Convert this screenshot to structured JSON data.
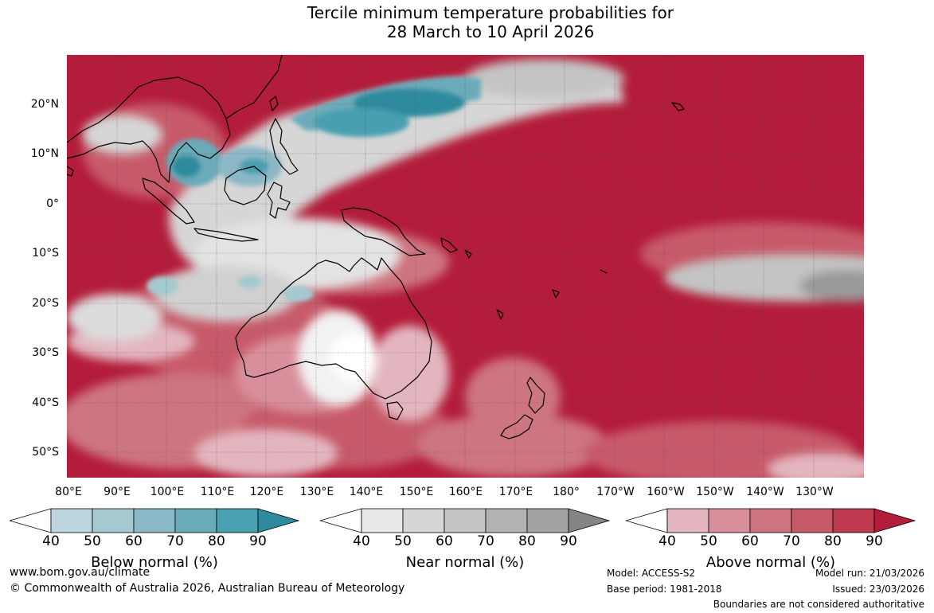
{
  "title": {
    "line1": "Tercile minimum temperature probabilities for",
    "line2": "28 March to 10 April 2026"
  },
  "map": {
    "lat_labels": [
      "20°N",
      "10°N",
      "0°",
      "10°S",
      "20°S",
      "30°S",
      "40°S",
      "50°S"
    ],
    "lon_labels": [
      "80°E",
      "90°E",
      "100°E",
      "110°E",
      "120°E",
      "130°E",
      "140°E",
      "150°E",
      "160°E",
      "170°E",
      "180°",
      "170°W",
      "160°W",
      "150°W",
      "140°W",
      "130°W"
    ],
    "lat_range": [
      -55,
      30
    ],
    "lon_range": [
      80,
      240
    ]
  },
  "colorbars": [
    {
      "label": "Below normal (%)",
      "ticks": [
        "40",
        "50",
        "60",
        "70",
        "80",
        "90"
      ],
      "colors": [
        "#ffffff",
        "#bcd5dc",
        "#a5c9d0",
        "#8bb8c6",
        "#6aabb9",
        "#4a9fb0",
        "#2e8b9e"
      ]
    },
    {
      "label": "Near normal (%)",
      "ticks": [
        "40",
        "50",
        "60",
        "70",
        "80",
        "90"
      ],
      "colors": [
        "#ffffff",
        "#e8e8e8",
        "#d6d6d6",
        "#c4c4c4",
        "#b3b3b3",
        "#a3a3a3",
        "#858585"
      ]
    },
    {
      "label": "Above normal (%)",
      "ticks": [
        "40",
        "50",
        "60",
        "70",
        "80",
        "90"
      ],
      "colors": [
        "#ffffff",
        "#e3b6bf",
        "#d98f9b",
        "#cd7480",
        "#c75a69",
        "#bf3a4f",
        "#b31c3a"
      ]
    }
  ],
  "footer": {
    "website": "www.bom.gov.au/climate",
    "copyright": "© Commonwealth of Australia 2026, Australian Bureau of Meteorology",
    "model": "Model: ACCESS-S2",
    "base_period": "Base period: 1981-2018",
    "model_run": "Model run: 21/03/2026",
    "issued": "Issued: 23/03/2026",
    "disclaimer": "Boundaries are not considered authoritative"
  }
}
